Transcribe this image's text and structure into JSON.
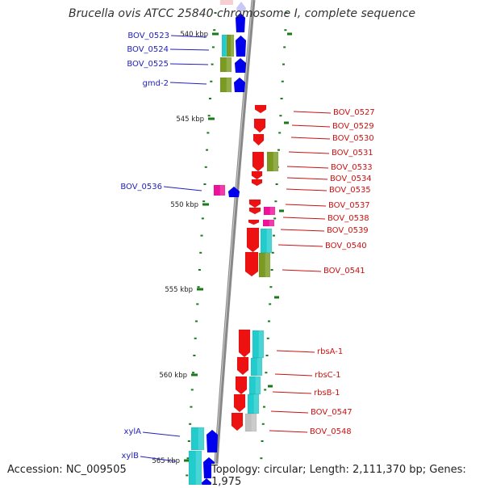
{
  "title": "Brucella ovis ATCC 25840 chromosome I, complete sequence",
  "accession": "Accession: NC_009505",
  "topology": "Topology: circular; Length: 2,111,370 bp; Genes: 1,975",
  "colors": {
    "tick": "#1a7a1a",
    "gene_blue": "#0000ee",
    "gene_red": "#ee1111",
    "gene_pink": "#ee1199",
    "cyan": "#22cccc",
    "olive": "#7a9a22",
    "grey": "#c0c0c0",
    "backbone": "#888888",
    "label_blue": "#2222bb",
    "label_red": "#cc1111"
  },
  "scale_labels": [
    "540 kbp",
    "545 kbp",
    "550 kbp",
    "555 kbp",
    "560 kbp",
    "565 kbp"
  ],
  "left_genes": [
    "BOV_0523",
    "BOV_0524",
    "BOV_0525",
    "gmd-2",
    "BOV_0536",
    "xylA",
    "xylB"
  ],
  "right_genes": [
    "BOV_0527",
    "BOV_0529",
    "BOV_0530",
    "BOV_0531",
    "BOV_0533",
    "BOV_0534",
    "BOV_0535",
    "BOV_0537",
    "BOV_0538",
    "BOV_0539",
    "BOV_0540",
    "BOV_0541",
    "rbsA-1",
    "rbsC-1",
    "rbsB-1",
    "BOV_0547",
    "BOV_0548"
  ]
}
